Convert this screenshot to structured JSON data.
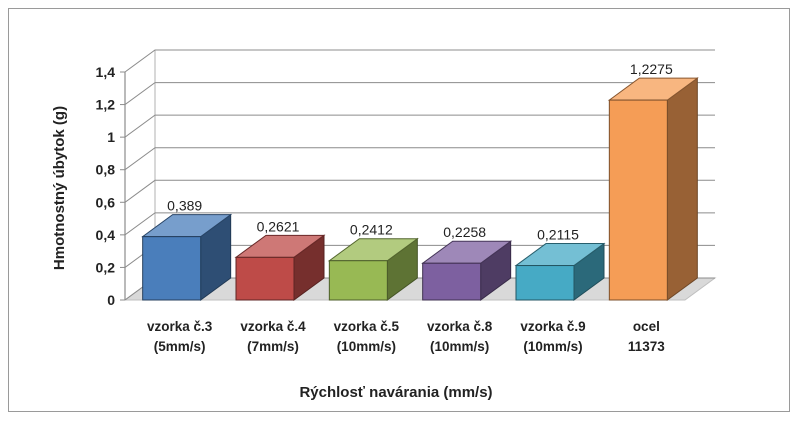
{
  "chart_data": {
    "type": "bar",
    "title": "",
    "xlabel": "Rýchlosť navárania (mm/s)",
    "ylabel": "Hmotnostný úbytok (g)",
    "ylim": [
      0,
      1.4
    ],
    "yticks": [
      "0",
      "0,2",
      "0,4",
      "0,6",
      "0,8",
      "1",
      "1,2",
      "1,4"
    ],
    "yticks_values": [
      0,
      0.2,
      0.4,
      0.6,
      0.8,
      1.0,
      1.2,
      1.4
    ],
    "grid": true,
    "style": "3d",
    "categories": [
      [
        "vzorka č.3",
        "(5mm/s)"
      ],
      [
        "vzorka č.4",
        "(7mm/s)"
      ],
      [
        "vzorka č.5",
        "(10mm/s)"
      ],
      [
        "vzorka č.8",
        "(10mm/s)"
      ],
      [
        "vzorka č.9",
        "(10mm/s)"
      ],
      [
        "ocel",
        "11373"
      ]
    ],
    "values": [
      0.389,
      0.2621,
      0.2412,
      0.2258,
      0.2115,
      1.2275
    ],
    "value_labels": [
      "0,389",
      "0,2621",
      "0,2412",
      "0,2258",
      "0,2115",
      "1,2275"
    ],
    "colors": [
      "#4a7ebb",
      "#be4b48",
      "#98b954",
      "#7d60a0",
      "#46aac5",
      "#f59d56"
    ]
  }
}
